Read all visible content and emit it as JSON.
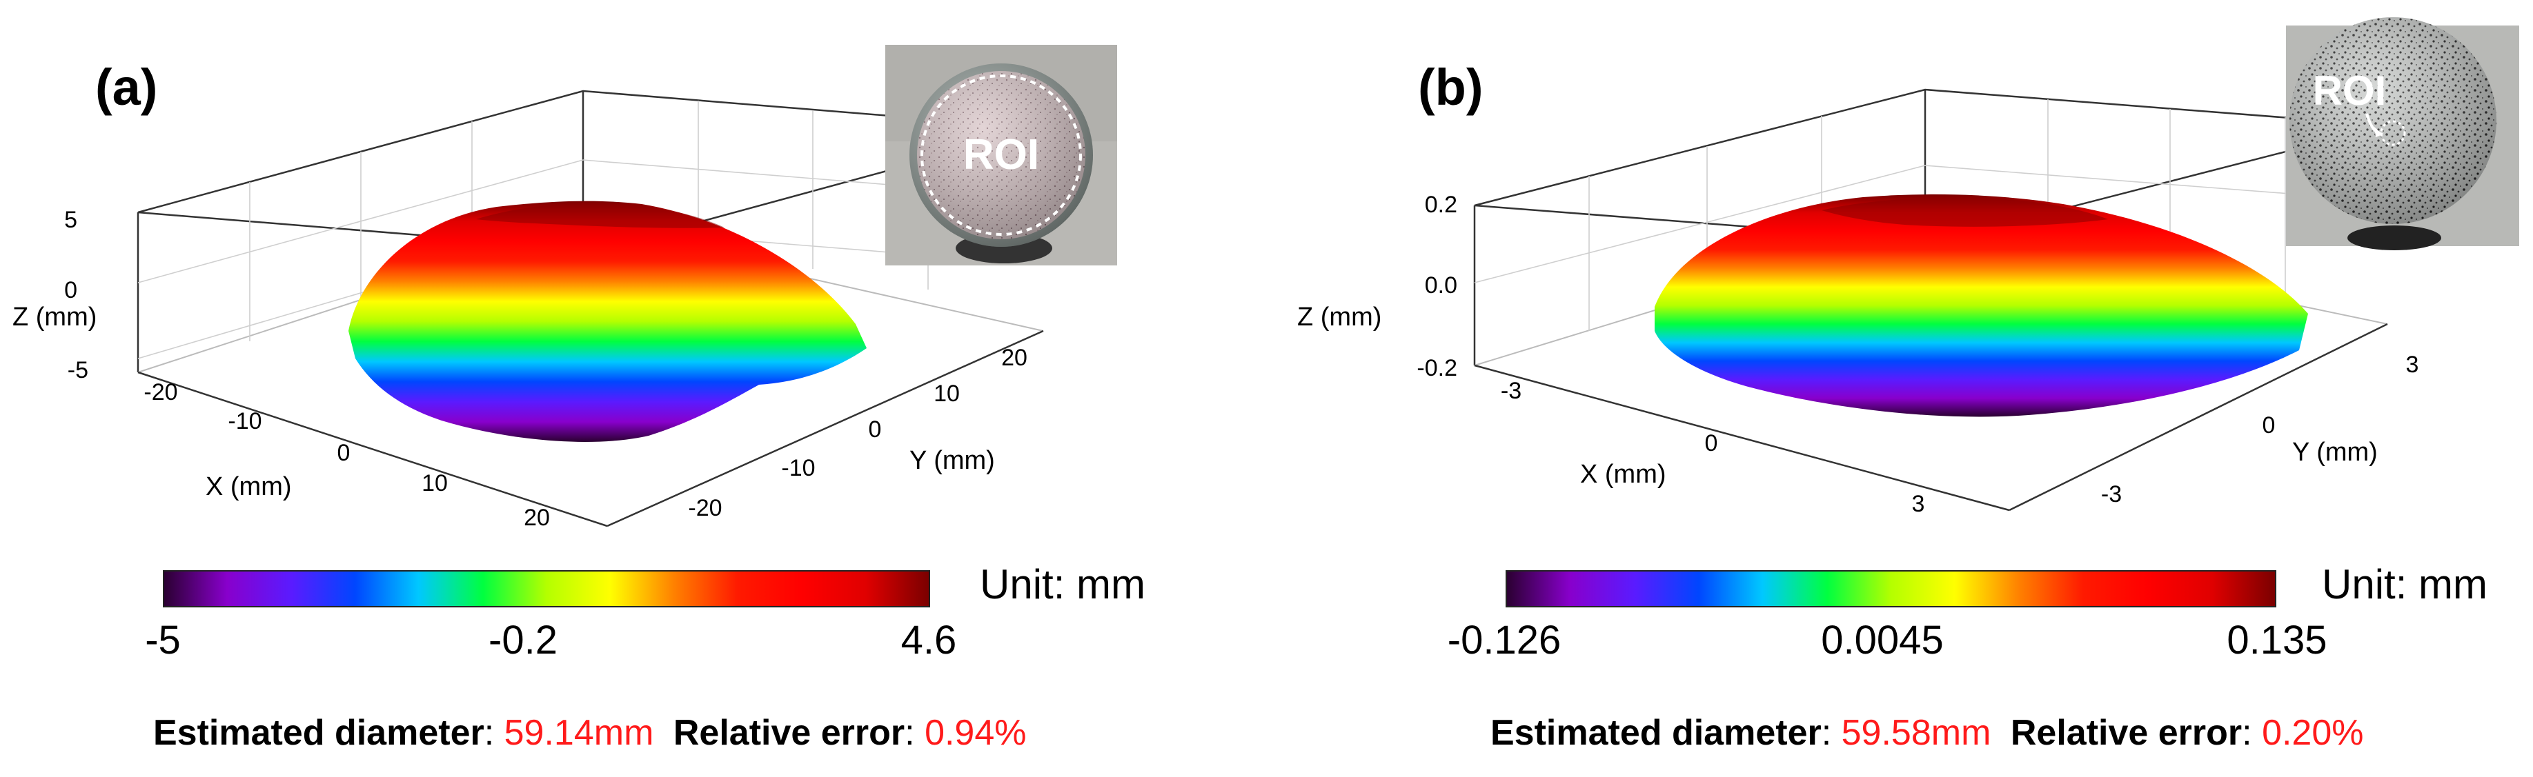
{
  "chart_data": [
    {
      "type": "surface",
      "panel_label": "(a)",
      "axes": {
        "x": {
          "label": "X (mm)",
          "ticks": [
            "-20",
            "-10",
            "0",
            "10",
            "20"
          ]
        },
        "y": {
          "label": "Y (mm)",
          "ticks": [
            "-20",
            "-10",
            "0",
            "10",
            "20"
          ]
        },
        "z": {
          "label": "Z (mm)",
          "ticks": [
            "5",
            "0",
            "-5"
          ]
        }
      },
      "inset": {
        "roi_label": "ROI"
      },
      "colorbar": {
        "min": -5,
        "max": 4.6,
        "tick_labels": [
          "-5",
          "-0.2",
          "4.6"
        ],
        "unit_label": "Unit: mm"
      },
      "result": {
        "diameter_label": "Estimated diameter",
        "diameter_value": "59.14mm",
        "error_label": "Relative error",
        "error_value": "0.94%"
      }
    },
    {
      "type": "surface",
      "panel_label": "(b)",
      "axes": {
        "x": {
          "label": "X (mm)",
          "ticks": [
            "-3",
            "0",
            "3"
          ]
        },
        "y": {
          "label": "Y (mm)",
          "ticks": [
            "-3",
            "0",
            "3"
          ]
        },
        "z": {
          "label": "Z (mm)",
          "ticks": [
            "0.2",
            "0.0",
            "-0.2"
          ]
        }
      },
      "inset": {
        "roi_label": "ROI"
      },
      "colorbar": {
        "min": -0.126,
        "max": 0.135,
        "tick_labels": [
          "-0.126",
          "0.0045",
          "0.135"
        ],
        "unit_label": "Unit: mm"
      },
      "result": {
        "diameter_label": "Estimated diameter",
        "diameter_value": "59.58mm",
        "error_label": "Relative error",
        "error_value": "0.20%"
      }
    }
  ],
  "colors": {
    "error_value": "#ff1a1a",
    "colormap": [
      "#2a0030",
      "#8800cc",
      "#5a1bff",
      "#0046ff",
      "#00c8ff",
      "#00ff40",
      "#b4ff00",
      "#ffff00",
      "#ff8000",
      "#ff1a00",
      "#ff0000",
      "#e00000",
      "#7a0000"
    ]
  },
  "colon": ":"
}
